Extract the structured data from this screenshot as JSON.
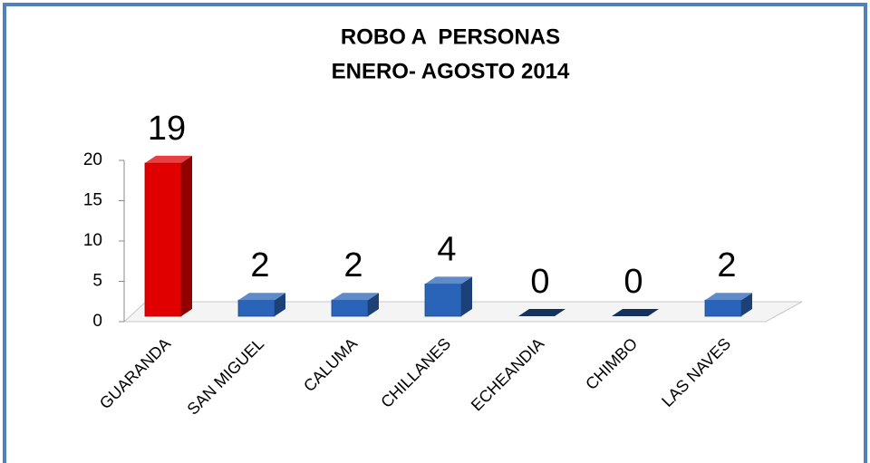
{
  "chart_data": {
    "type": "bar3d",
    "title": "ROBO A  PERSONAS",
    "subtitle": "ENERO- AGOSTO 2014",
    "categories": [
      "GUARANDA",
      "SAN MIGUEL",
      "CALUMA",
      "CHILLANES",
      "ECHEANDIA",
      "CHIMBO",
      "LAS NAVES"
    ],
    "values": [
      19,
      2,
      2,
      4,
      0,
      0,
      2
    ],
    "colors": [
      "#e00000",
      "#2a64b8",
      "#2a64b8",
      "#2a64b8",
      "#2a64b8",
      "#2a64b8",
      "#2a64b8"
    ],
    "ylim": [
      0,
      20
    ],
    "yticks": [
      0,
      5,
      10,
      15,
      20
    ],
    "grid": false
  }
}
